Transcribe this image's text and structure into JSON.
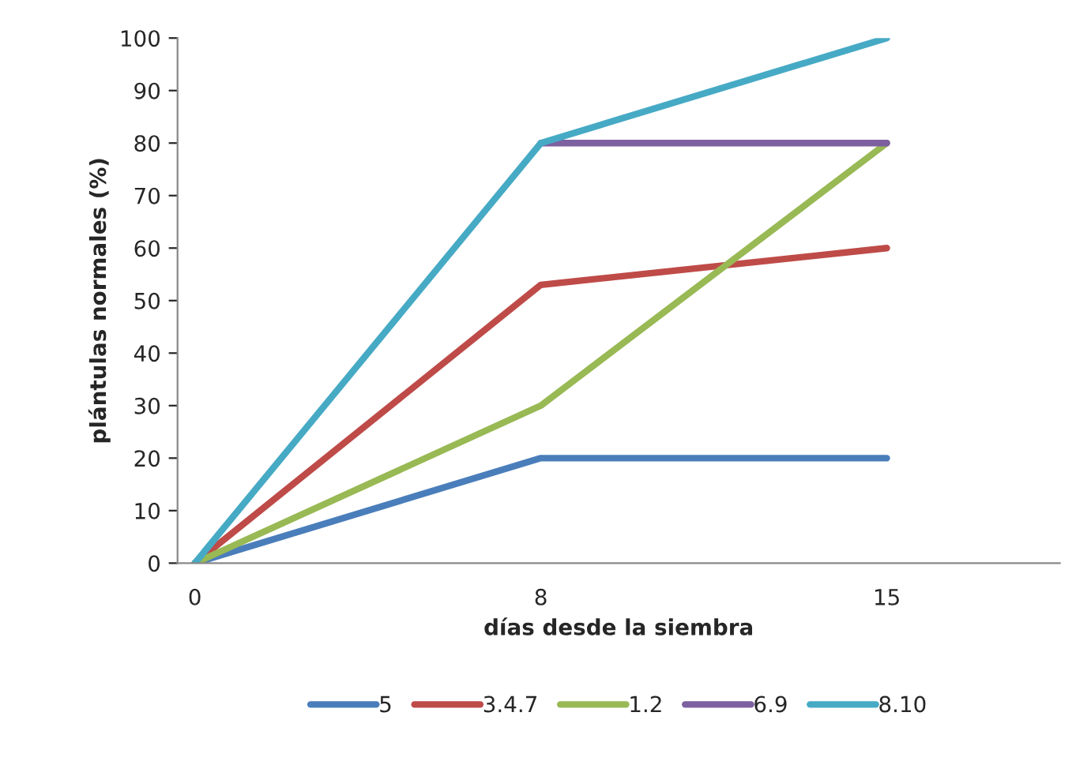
{
  "chart_data": {
    "type": "line",
    "xlabel": "días desde la siembra",
    "ylabel": "plántulas normales (%)",
    "categories": [
      "0",
      "8",
      "15"
    ],
    "series": [
      {
        "name": "5",
        "color": "#4a7ebb",
        "values": [
          0,
          20,
          20
        ]
      },
      {
        "name": "3.4.7",
        "color": "#be4b48",
        "values": [
          0,
          53,
          60
        ]
      },
      {
        "name": "1.2",
        "color": "#98b954",
        "values": [
          0,
          30,
          80
        ]
      },
      {
        "name": "6.9",
        "color": "#7d60a0",
        "values": [
          null,
          80,
          80
        ]
      },
      {
        "name": "8.10",
        "color": "#46aac5",
        "values": [
          0,
          80,
          100
        ]
      }
    ],
    "ylim": [
      0,
      100
    ],
    "yticks": [
      0,
      10,
      20,
      30,
      40,
      50,
      60,
      70,
      80,
      90,
      100
    ],
    "grid": false,
    "legend": "bottom",
    "marker": "none",
    "line_style": "solid"
  }
}
